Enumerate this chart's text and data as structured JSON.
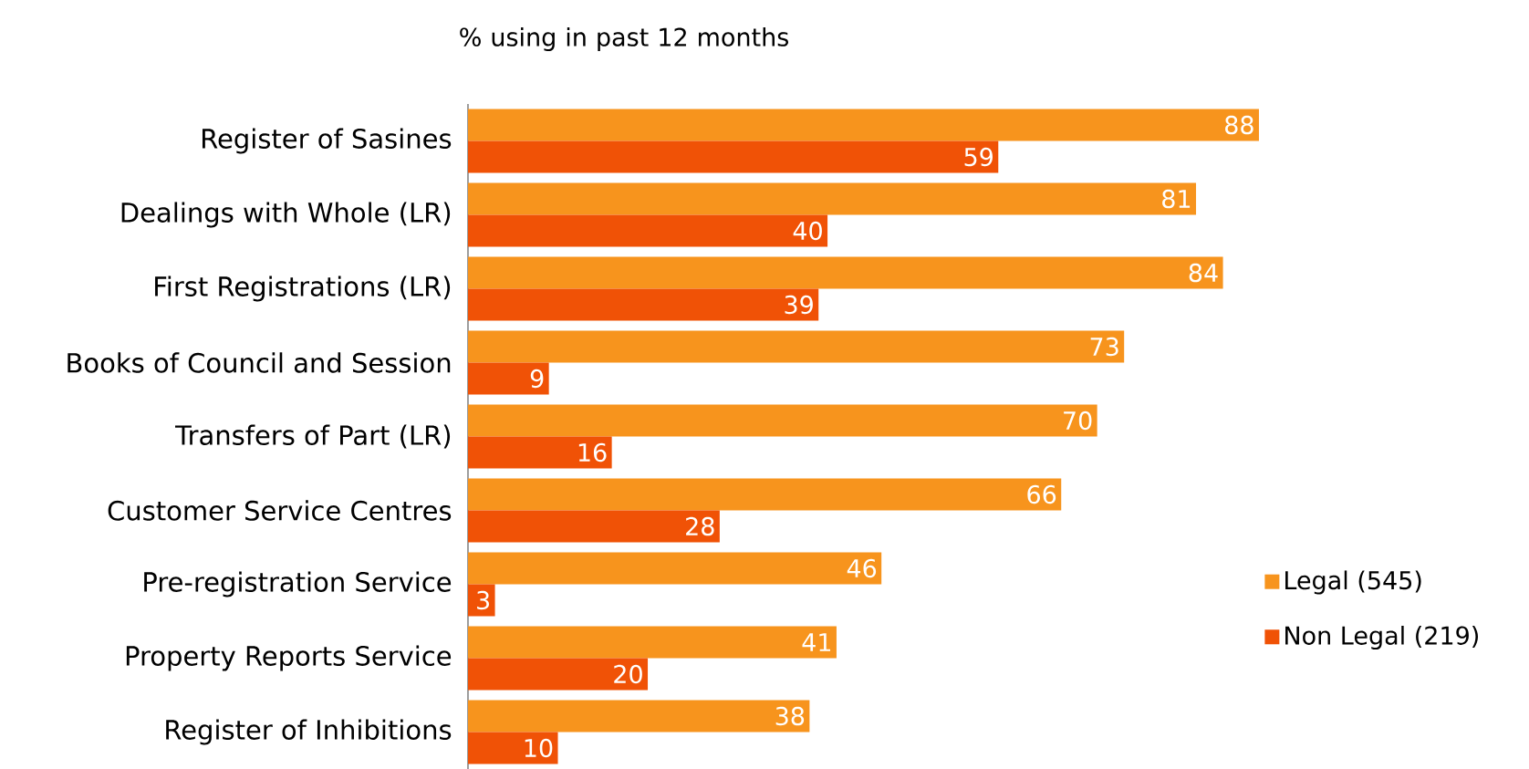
{
  "chart_data": {
    "type": "bar",
    "orientation": "horizontal",
    "title": "% using in past 12 months",
    "categories": [
      "Register of Sasines",
      "Dealings with Whole (LR)",
      "First Registrations (LR)",
      "Books of Council and Session",
      "Transfers of Part (LR)",
      "Customer Service Centres",
      "Pre-registration Service",
      "Property Reports Service",
      "Register of Inhibitions"
    ],
    "series": [
      {
        "name": "Legal (545)",
        "color": "#f7941d",
        "values": [
          88,
          81,
          84,
          73,
          70,
          66,
          46,
          41,
          38
        ]
      },
      {
        "name": "Non Legal (219)",
        "color": "#f05206",
        "values": [
          59,
          40,
          39,
          9,
          16,
          28,
          3,
          20,
          10
        ]
      }
    ],
    "data_labels": true,
    "legend": "right"
  }
}
